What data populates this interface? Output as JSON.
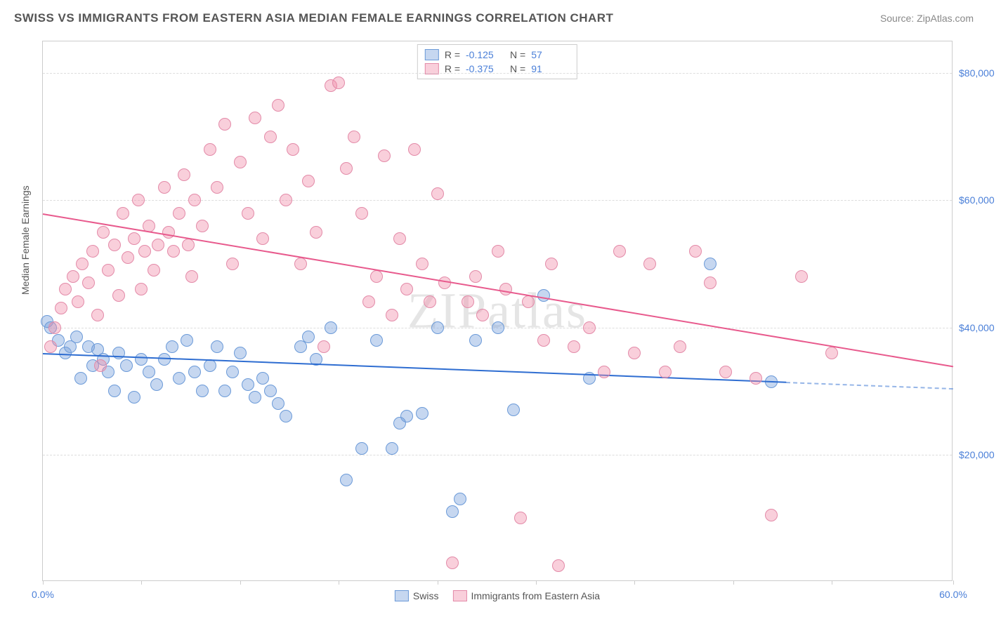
{
  "title": "SWISS VS IMMIGRANTS FROM EASTERN ASIA MEDIAN FEMALE EARNINGS CORRELATION CHART",
  "source": "Source: ZipAtlas.com",
  "watermark": "ZIPatlas",
  "chart": {
    "type": "scatter",
    "ylabel": "Median Female Earnings",
    "xlim": [
      0,
      60
    ],
    "ylim": [
      0,
      85000
    ],
    "ytick_values": [
      20000,
      40000,
      60000,
      80000
    ],
    "ytick_labels": [
      "$20,000",
      "$40,000",
      "$60,000",
      "$80,000"
    ],
    "xtick_values": [
      0,
      6.5,
      13,
      19.5,
      26,
      32.5,
      39,
      45.5,
      52,
      60
    ],
    "xtick_label_left": "0.0%",
    "xtick_label_right": "60.0%",
    "grid_color": "#dddddd",
    "background_color": "#ffffff",
    "series": [
      {
        "name": "Swiss",
        "color_fill": "rgba(120,160,220,0.42)",
        "color_stroke": "#6b9ad8",
        "trend_color": "#2e6dd1",
        "R": "-0.125",
        "N": "57",
        "trend": {
          "x1": 0,
          "y1": 36000,
          "x2": 49,
          "y2": 31500,
          "dash_to_x": 60,
          "dash_to_y": 30500
        },
        "points": [
          [
            0.3,
            41000
          ],
          [
            0.5,
            40000
          ],
          [
            1.0,
            38000
          ],
          [
            1.5,
            36000
          ],
          [
            1.8,
            37000
          ],
          [
            2.2,
            38500
          ],
          [
            2.5,
            32000
          ],
          [
            3.0,
            37000
          ],
          [
            3.3,
            34000
          ],
          [
            3.6,
            36500
          ],
          [
            4.0,
            35000
          ],
          [
            4.3,
            33000
          ],
          [
            4.7,
            30000
          ],
          [
            5.0,
            36000
          ],
          [
            5.5,
            34000
          ],
          [
            6.0,
            29000
          ],
          [
            6.5,
            35000
          ],
          [
            7.0,
            33000
          ],
          [
            7.5,
            31000
          ],
          [
            8.0,
            35000
          ],
          [
            8.5,
            37000
          ],
          [
            9.0,
            32000
          ],
          [
            9.5,
            38000
          ],
          [
            10.0,
            33000
          ],
          [
            10.5,
            30000
          ],
          [
            11.0,
            34000
          ],
          [
            11.5,
            37000
          ],
          [
            12.0,
            30000
          ],
          [
            12.5,
            33000
          ],
          [
            13.0,
            36000
          ],
          [
            13.5,
            31000
          ],
          [
            14.0,
            29000
          ],
          [
            14.5,
            32000
          ],
          [
            15.0,
            30000
          ],
          [
            15.5,
            28000
          ],
          [
            16.0,
            26000
          ],
          [
            17.0,
            37000
          ],
          [
            17.5,
            38500
          ],
          [
            18.0,
            35000
          ],
          [
            19.0,
            40000
          ],
          [
            20.0,
            16000
          ],
          [
            21.0,
            21000
          ],
          [
            22.0,
            38000
          ],
          [
            23.0,
            21000
          ],
          [
            24.0,
            26000
          ],
          [
            25.0,
            26500
          ],
          [
            26.0,
            40000
          ],
          [
            27.0,
            11000
          ],
          [
            28.5,
            38000
          ],
          [
            30.0,
            40000
          ],
          [
            31.0,
            27000
          ],
          [
            33.0,
            45000
          ],
          [
            36.0,
            32000
          ],
          [
            44.0,
            50000
          ],
          [
            48.0,
            31500
          ],
          [
            27.5,
            13000
          ],
          [
            23.5,
            25000
          ]
        ]
      },
      {
        "name": "Immigrants from Eastern Asia",
        "color_fill": "rgba(240,140,170,0.42)",
        "color_stroke": "#e38aa8",
        "trend_color": "#e85a8d",
        "R": "-0.375",
        "N": "91",
        "trend": {
          "x1": 0,
          "y1": 58000,
          "x2": 60,
          "y2": 34000
        },
        "points": [
          [
            0.5,
            37000
          ],
          [
            0.8,
            40000
          ],
          [
            1.2,
            43000
          ],
          [
            1.5,
            46000
          ],
          [
            2.0,
            48000
          ],
          [
            2.3,
            44000
          ],
          [
            2.6,
            50000
          ],
          [
            3.0,
            47000
          ],
          [
            3.3,
            52000
          ],
          [
            3.6,
            42000
          ],
          [
            4.0,
            55000
          ],
          [
            4.3,
            49000
          ],
          [
            4.7,
            53000
          ],
          [
            5.0,
            45000
          ],
          [
            5.3,
            58000
          ],
          [
            5.6,
            51000
          ],
          [
            6.0,
            54000
          ],
          [
            6.3,
            60000
          ],
          [
            6.7,
            52000
          ],
          [
            7.0,
            56000
          ],
          [
            7.3,
            49000
          ],
          [
            7.6,
            53000
          ],
          [
            8.0,
            62000
          ],
          [
            8.3,
            55000
          ],
          [
            8.6,
            52000
          ],
          [
            9.0,
            58000
          ],
          [
            9.3,
            64000
          ],
          [
            9.6,
            53000
          ],
          [
            10.0,
            60000
          ],
          [
            10.5,
            56000
          ],
          [
            11.0,
            68000
          ],
          [
            11.5,
            62000
          ],
          [
            12.0,
            72000
          ],
          [
            12.5,
            50000
          ],
          [
            13.0,
            66000
          ],
          [
            13.5,
            58000
          ],
          [
            14.0,
            73000
          ],
          [
            14.5,
            54000
          ],
          [
            15.0,
            70000
          ],
          [
            15.5,
            75000
          ],
          [
            16.0,
            60000
          ],
          [
            16.5,
            68000
          ],
          [
            17.0,
            50000
          ],
          [
            17.5,
            63000
          ],
          [
            18.0,
            55000
          ],
          [
            18.5,
            37000
          ],
          [
            19.0,
            78000
          ],
          [
            19.5,
            78500
          ],
          [
            20.0,
            65000
          ],
          [
            20.5,
            70000
          ],
          [
            21.0,
            58000
          ],
          [
            21.5,
            44000
          ],
          [
            22.0,
            48000
          ],
          [
            22.5,
            67000
          ],
          [
            23.0,
            42000
          ],
          [
            23.5,
            54000
          ],
          [
            24.0,
            46000
          ],
          [
            24.5,
            68000
          ],
          [
            25.0,
            50000
          ],
          [
            25.5,
            44000
          ],
          [
            26.0,
            61000
          ],
          [
            26.5,
            47000
          ],
          [
            27.0,
            3000
          ],
          [
            28.0,
            44000
          ],
          [
            28.5,
            48000
          ],
          [
            29.0,
            42000
          ],
          [
            30.0,
            52000
          ],
          [
            30.5,
            46000
          ],
          [
            31.5,
            10000
          ],
          [
            32.0,
            44000
          ],
          [
            33.0,
            38000
          ],
          [
            33.5,
            50000
          ],
          [
            34.0,
            2500
          ],
          [
            35.0,
            37000
          ],
          [
            36.0,
            40000
          ],
          [
            37.0,
            33000
          ],
          [
            38.0,
            52000
          ],
          [
            39.0,
            36000
          ],
          [
            40.0,
            50000
          ],
          [
            41.0,
            33000
          ],
          [
            42.0,
            37000
          ],
          [
            43.0,
            52000
          ],
          [
            44.0,
            47000
          ],
          [
            45.0,
            33000
          ],
          [
            47.0,
            32000
          ],
          [
            48.0,
            10500
          ],
          [
            50.0,
            48000
          ],
          [
            52.0,
            36000
          ],
          [
            3.8,
            34000
          ],
          [
            6.5,
            46000
          ],
          [
            9.8,
            48000
          ]
        ]
      }
    ]
  }
}
